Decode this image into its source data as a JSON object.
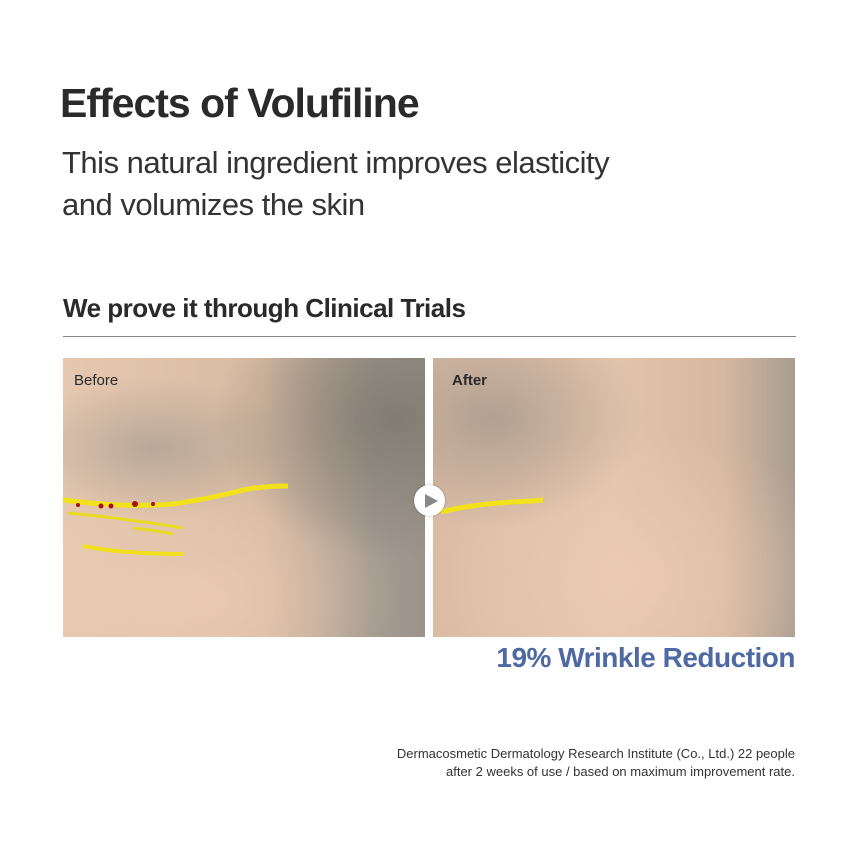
{
  "title": "Effects of Volufiline",
  "subtitle": [
    "This natural ingredient improves elasticity",
    "and volumizes the skin"
  ],
  "section_title": "We prove it through Clinical Trials",
  "photos": {
    "before_label": "Before",
    "after_label": "After"
  },
  "arrow_icon": "play-arrow-icon",
  "result": "19% Wrinkle Reduction",
  "result_color": "#4f6aa3",
  "footnote": [
    "Dermacosmetic Dermatology Research Institute (Co., Ltd.) 22 people",
    "after 2 weeks of use / based on maximum improvement rate."
  ]
}
